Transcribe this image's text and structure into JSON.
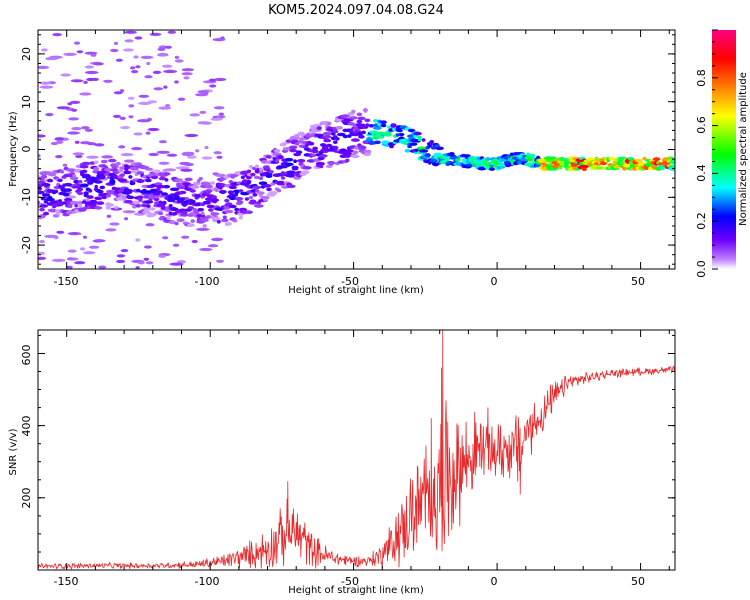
{
  "chart_data": [
    {
      "type": "heatmap",
      "title": "KOM5.2024.097.04.08.G24",
      "xlabel": "Height of straight line (km)",
      "ylabel": "Frequency (Hz)",
      "xlim": [
        -160,
        62
      ],
      "ylim": [
        -25,
        25
      ],
      "xticks": [
        "-150",
        "-100",
        "-50",
        "0",
        "50"
      ],
      "yticks": [
        "20",
        "10",
        "0",
        "-10",
        "-20"
      ],
      "grid": false,
      "colorbar": {
        "label": "Normalized spectral amplitude",
        "range": [
          0,
          1
        ],
        "ticks": [
          "0.0",
          "0.2",
          "0.4",
          "0.6",
          "0.8"
        ],
        "colormap": [
          "#ffffff",
          "#c080ff",
          "#7000ff",
          "#0000ff",
          "#00ffff",
          "#00ff00",
          "#ffff00",
          "#ff8000",
          "#ff0000",
          "#ff0080"
        ]
      },
      "ridge": {
        "description_points_x": [
          -160,
          -145,
          -130,
          -110,
          -95,
          -85,
          -75,
          -65,
          -55,
          -45,
          -38,
          -30,
          -25,
          -20,
          -15,
          -5,
          0,
          5,
          10,
          15,
          20,
          30,
          40,
          50,
          62
        ],
        "description_points_freq": [
          -10,
          -8,
          -7,
          -11,
          -11,
          -8,
          -4,
          0,
          2,
          4,
          3,
          2,
          0,
          -2,
          -2,
          -3,
          -3,
          -2,
          -2,
          -3,
          -3,
          -3,
          -3,
          -3,
          -3
        ],
        "peak_amplitude_region_x": [
          -45,
          62
        ],
        "peak_amplitude": 0.95
      }
    },
    {
      "type": "line",
      "xlabel": "Height of straight line (km)",
      "ylabel": "SNR (v/v)",
      "xlim": [
        -160,
        62
      ],
      "ylim": [
        0,
        665
      ],
      "xticks": [
        "-150",
        "-100",
        "-50",
        "0",
        "50"
      ],
      "yticks": [
        "200",
        "400",
        "600"
      ],
      "color": "#e8282a",
      "grid": false,
      "envelope": {
        "x": [
          -160,
          -140,
          -120,
          -105,
          -95,
          -85,
          -80,
          -75,
          -72,
          -68,
          -65,
          -60,
          -55,
          -50,
          -45,
          -40,
          -35,
          -30,
          -25,
          -22,
          -20,
          -18,
          -15,
          -10,
          -5,
          0,
          5,
          8,
          10,
          15,
          20,
          25,
          30,
          40,
          50,
          62
        ],
        "base": [
          10,
          12,
          12,
          15,
          25,
          45,
          60,
          90,
          110,
          90,
          60,
          40,
          30,
          25,
          25,
          40,
          90,
          150,
          190,
          210,
          230,
          250,
          270,
          310,
          340,
          330,
          340,
          330,
          380,
          420,
          480,
          520,
          530,
          545,
          550,
          555
        ],
        "amp": [
          8,
          8,
          8,
          10,
          20,
          40,
          60,
          80,
          90,
          80,
          50,
          30,
          20,
          15,
          15,
          40,
          80,
          120,
          160,
          170,
          200,
          220,
          160,
          120,
          100,
          90,
          90,
          110,
          80,
          60,
          40,
          25,
          15,
          12,
          10,
          10
        ]
      },
      "spikes": [
        {
          "x": -19,
          "y": 665
        },
        {
          "x": -23,
          "y": 420
        },
        {
          "x": -19.5,
          "y": 560
        },
        {
          "x": -73,
          "y": 245
        },
        {
          "x": 8,
          "y": 210
        }
      ]
    }
  ]
}
